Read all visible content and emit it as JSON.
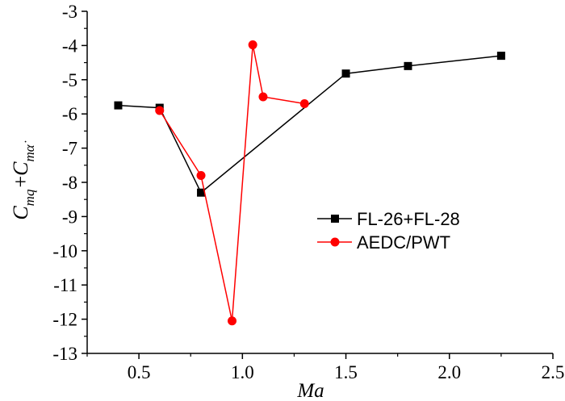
{
  "chart_data": {
    "type": "line",
    "title": "",
    "xlabel": "Ma",
    "ylabel": {
      "base_1": "C",
      "sub_1": "mq",
      "plus": "+",
      "base_2": "C",
      "sub_2": "mα̇"
    },
    "xlim": [
      0.25,
      2.5
    ],
    "ylim": [
      -13,
      -3
    ],
    "x_ticks": [
      0.5,
      1.0,
      1.5,
      2.0,
      2.5
    ],
    "x_tick_labels": [
      "0.5",
      "1.0",
      "1.5",
      "2.0",
      "2.5"
    ],
    "y_ticks": [
      -3,
      -4,
      -5,
      -6,
      -7,
      -8,
      -9,
      -10,
      -11,
      -12,
      -13
    ],
    "y_tick_labels": [
      "-3",
      "-4",
      "-5",
      "-6",
      "-7",
      "-8",
      "-9",
      "-10",
      "-11",
      "-12",
      "-13"
    ],
    "legend_position": "right-middle",
    "series": [
      {
        "name": "FL-26+FL-28",
        "color": "#000000",
        "marker": "square",
        "x": [
          0.4,
          0.6,
          0.8,
          1.5,
          1.8,
          2.25
        ],
        "y": [
          -5.75,
          -5.82,
          -8.3,
          -4.82,
          -4.6,
          -4.3
        ]
      },
      {
        "name": "AEDC/PWT",
        "color": "#ff0000",
        "marker": "circle",
        "x": [
          0.6,
          0.8,
          0.95,
          1.05,
          1.1,
          1.3
        ],
        "y": [
          -5.9,
          -7.8,
          -12.05,
          -3.98,
          -5.5,
          -5.7
        ]
      }
    ]
  }
}
